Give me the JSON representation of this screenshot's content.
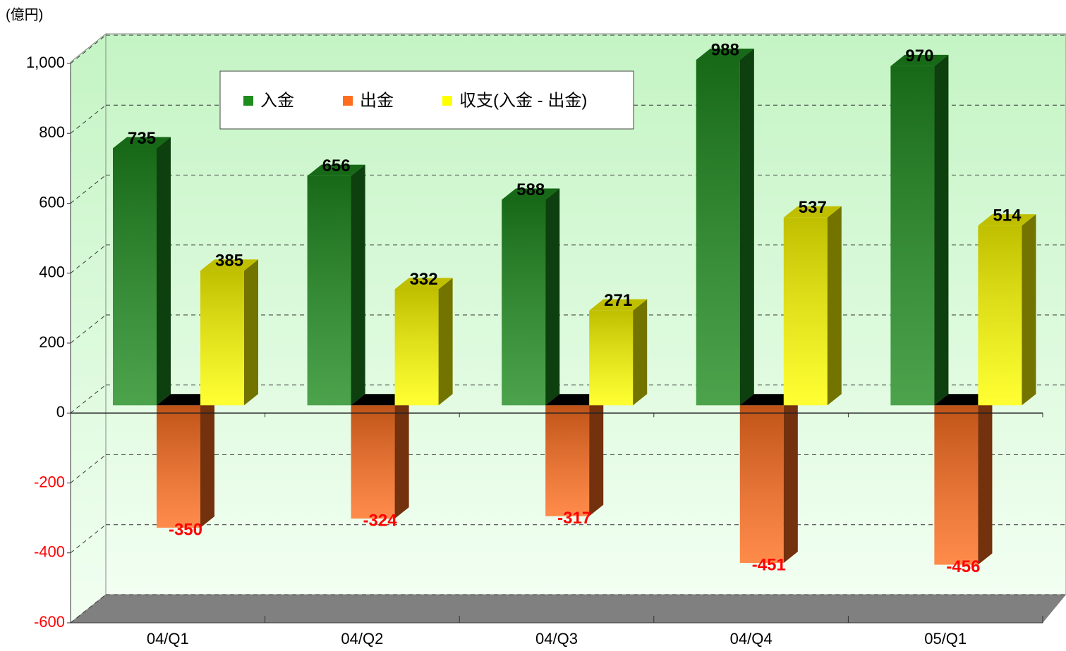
{
  "chart_data": {
    "type": "bar3d",
    "unit_label": "(億円)",
    "categories": [
      "04/Q1",
      "04/Q2",
      "04/Q3",
      "04/Q4",
      "05/Q1"
    ],
    "series": [
      {
        "name": "入金",
        "color": "#1f8c1f",
        "values": [
          735,
          656,
          588,
          988,
          970
        ]
      },
      {
        "name": "出金",
        "color": "#ff6e1e",
        "values": [
          -350,
          -324,
          -317,
          -451,
          -456
        ]
      },
      {
        "name": "収支(入金 - 出金)",
        "color": "#ffff00",
        "values": [
          385,
          332,
          271,
          537,
          514
        ]
      }
    ],
    "ylim": [
      -600,
      1000
    ],
    "yticks": [
      -600,
      -400,
      -200,
      0,
      200,
      400,
      600,
      800,
      {
        "value": 1000,
        "label": "1,000"
      }
    ],
    "grid": true,
    "legend": "top"
  }
}
